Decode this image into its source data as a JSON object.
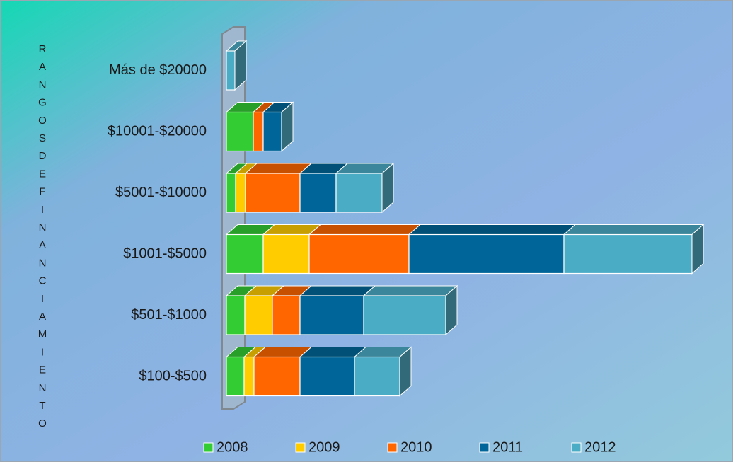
{
  "chart_data": {
    "type": "bar3d-stacked-horizontal",
    "y_label": "RANGOSDEFINANCIAMIENTO",
    "categories": [
      "Más de $20000",
      "$10001-$20000",
      "$5001-$10000",
      "$1001-$5000",
      "$501-$1000",
      "$100-$500"
    ],
    "series": [
      {
        "name": "2008",
        "color": "#33cc33",
        "values": [
          0,
          38,
          13,
          52,
          26,
          25
        ]
      },
      {
        "name": "2009",
        "color": "#ffcc00",
        "values": [
          0,
          0,
          14,
          65,
          39,
          14
        ]
      },
      {
        "name": "2010",
        "color": "#ff6600",
        "values": [
          0,
          14,
          77,
          141,
          39,
          65
        ]
      },
      {
        "name": "2011",
        "color": "#006699",
        "values": [
          0,
          26,
          51,
          219,
          90,
          77
        ]
      },
      {
        "name": "2012",
        "color": "#4bacc6",
        "values": [
          12,
          0,
          65,
          181,
          116,
          64
        ]
      }
    ],
    "legend": "bottom"
  }
}
